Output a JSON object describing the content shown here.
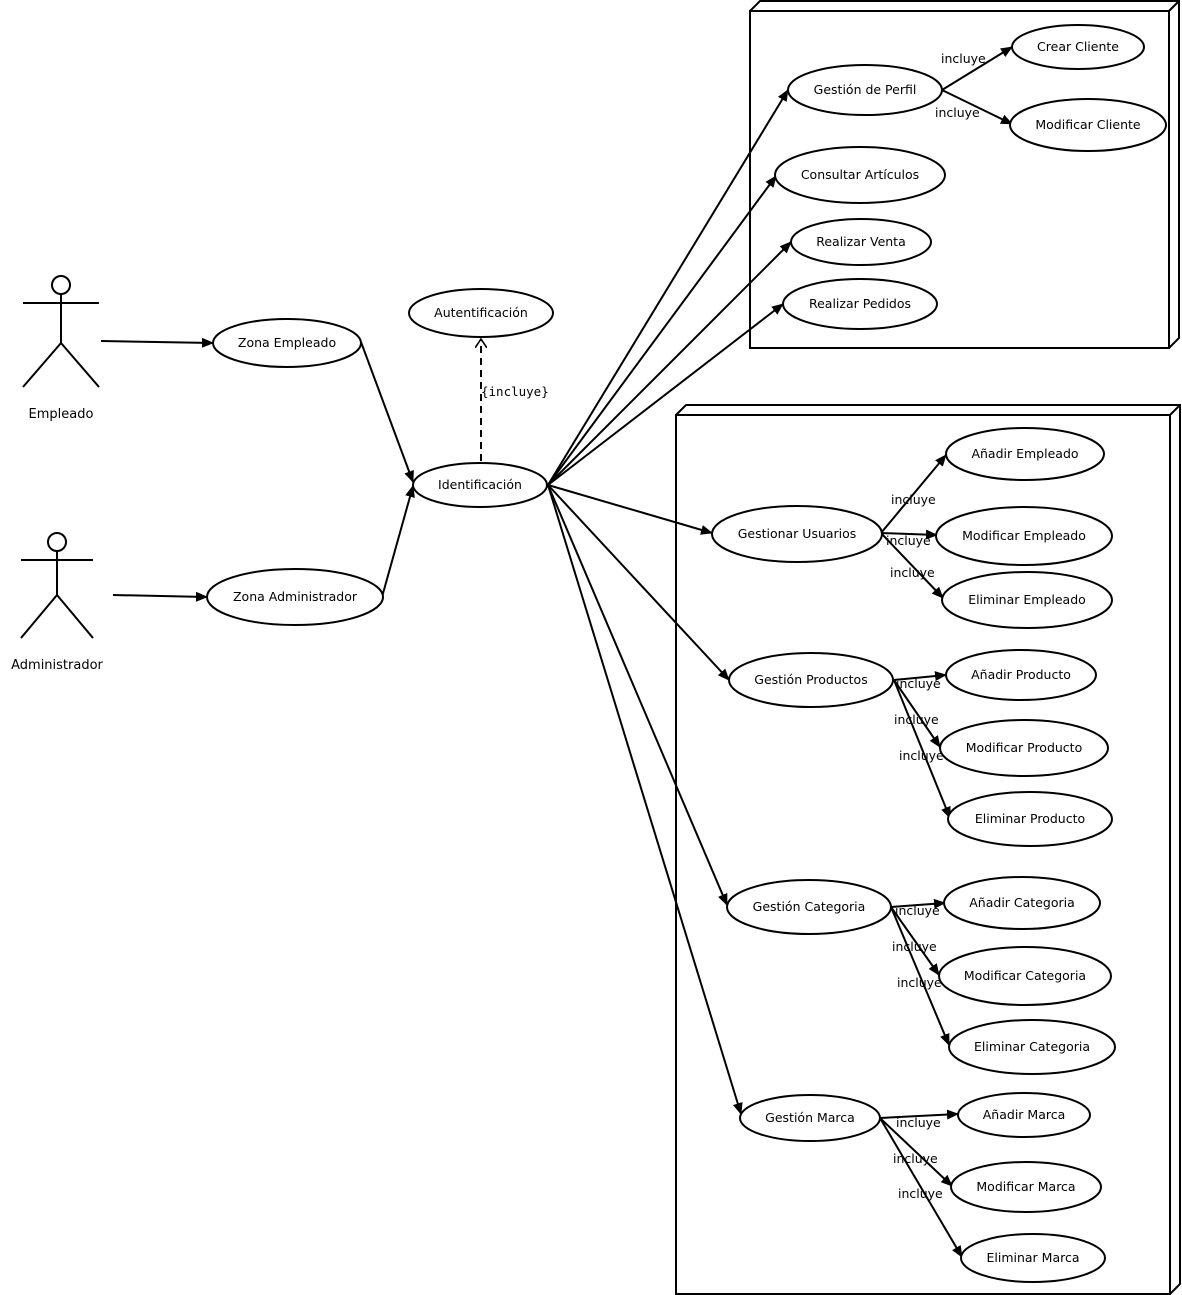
{
  "actors": [
    {
      "id": "empleado",
      "label": "Empleado"
    },
    {
      "id": "administrador",
      "label": "Administrador"
    }
  ],
  "use_cases": {
    "zona_empleado": "Zona Empleado",
    "zona_administrador": "Zona Administrador",
    "identificacion": "Identificación",
    "autentificacion": "Autentificación",
    "gestion_perfil": "Gestión de Perfil",
    "crear_cliente": "Crear Cliente",
    "modificar_cliente": "Modificar Cliente",
    "consultar_articulos": "Consultar Artículos",
    "realizar_venta": "Realizar Venta",
    "realizar_pedidos": "Realizar Pedidos",
    "gestionar_usuarios": "Gestionar Usuarios",
    "anadir_empleado": "Añadir Empleado",
    "modificar_empleado": "Modificar Empleado",
    "eliminar_empleado": "Eliminar Empleado",
    "gestion_productos": "Gestión Productos",
    "anadir_producto": "Añadir Producto",
    "modificar_producto": "Modificar Producto",
    "eliminar_producto": "Eliminar Producto",
    "gestion_categoria": "Gestión Categoria",
    "anadir_categoria": "Añadir Categoria",
    "modificar_categoria": "Modificar Categoria",
    "eliminar_categoria": "Eliminar Categoria",
    "gestion_marca": "Gestión Marca",
    "anadir_marca": "Añadir Marca",
    "modificar_marca": "Modificar Marca",
    "eliminar_marca": "Eliminar Marca"
  },
  "labels": {
    "include_text": "incluye",
    "include_stereotype": "{incluye}"
  }
}
